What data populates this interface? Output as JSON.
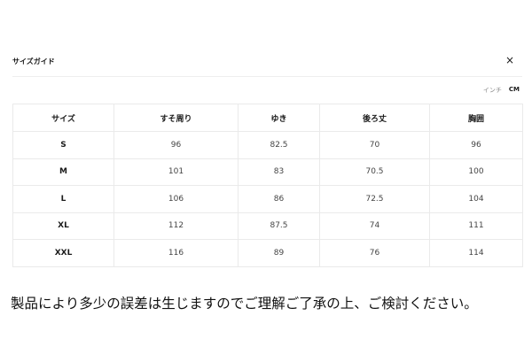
{
  "dialog": {
    "title": "サイズガイド",
    "close_icon": "close-icon",
    "close_glyph": "×"
  },
  "units": {
    "inch": "インチ",
    "cm": "CM",
    "selected": "CM"
  },
  "table": {
    "headers": [
      "サイズ",
      "すそ周り",
      "ゆき",
      "後ろ丈",
      "胸囲"
    ],
    "rows": [
      [
        "S",
        "96",
        "82.5",
        "70",
        "96"
      ],
      [
        "M",
        "101",
        "83",
        "70.5",
        "100"
      ],
      [
        "L",
        "106",
        "86",
        "72.5",
        "104"
      ],
      [
        "XL",
        "112",
        "87.5",
        "74",
        "111"
      ],
      [
        "XXL",
        "116",
        "89",
        "76",
        "114"
      ]
    ]
  },
  "note": "製品により多少の誤差は生じますのでご理解ご了承の上、ご検討ください。"
}
